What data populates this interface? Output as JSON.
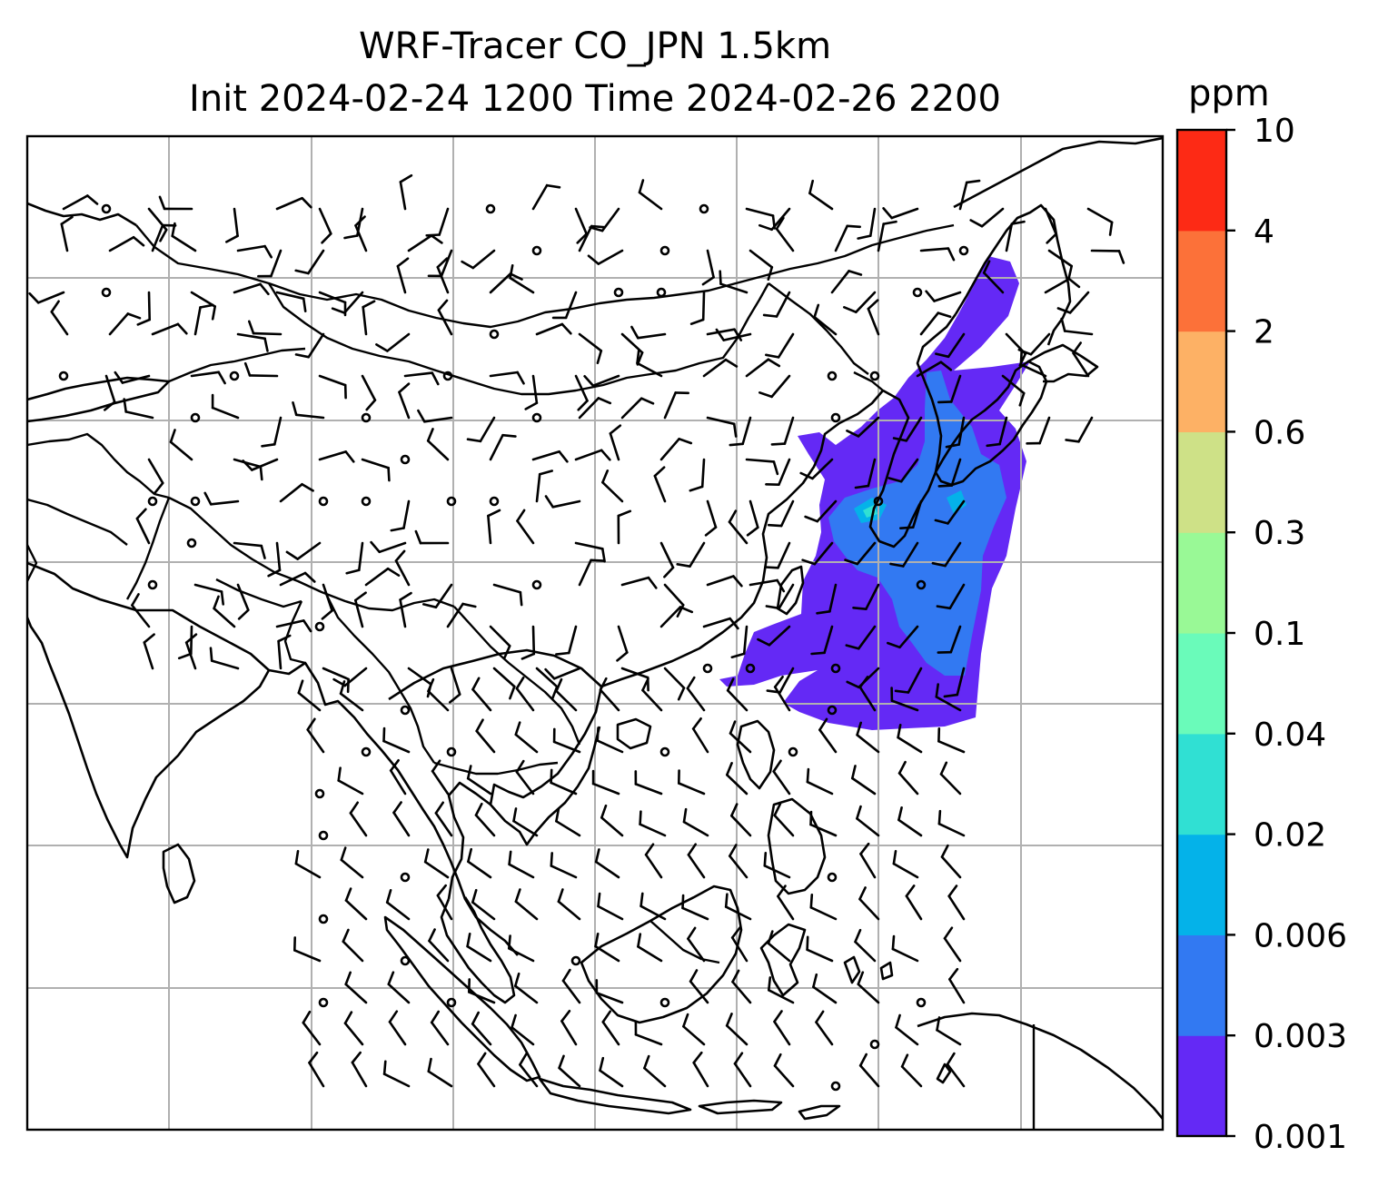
{
  "title": {
    "line1": "WRF-Tracer CO_JPN 1.5km",
    "line2": "Init 2024-02-24 1200 Time 2024-02-26 2200"
  },
  "colorbar": {
    "unit": "ppm",
    "levels": [
      "0.001",
      "0.003",
      "0.006",
      "0.02",
      "0.04",
      "0.1",
      "0.3",
      "0.6",
      "2",
      "4",
      "10"
    ],
    "colors": [
      "#6429f5",
      "#3279f2",
      "#04b2e9",
      "#30e0d3",
      "#6afbba",
      "#99f996",
      "#cee187",
      "#fdb165",
      "#fc7139",
      "#fd2a15"
    ]
  },
  "map": {
    "layers": [
      "coastlines",
      "country-borders",
      "gridlines",
      "wind-barbs",
      "co-tracer-plume"
    ],
    "gridline_color": "#b0b0b0",
    "land_outline_color": "#000000",
    "background": "#ffffff"
  }
}
